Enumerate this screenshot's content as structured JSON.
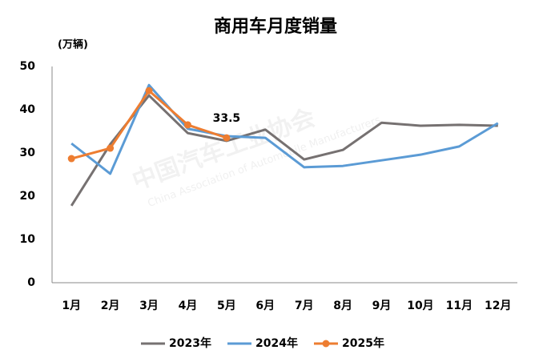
{
  "chart_data": {
    "type": "line",
    "title": "商用车月度销量",
    "y_label": "(万辆)",
    "watermark": "中国汽车工业协会",
    "watermark_subtitle": "China Association of Automobile Manufacturers",
    "categories": [
      "1月",
      "2月",
      "3月",
      "4月",
      "5月",
      "6月",
      "7月",
      "8月",
      "9月",
      "10月",
      "11月",
      "12月"
    ],
    "series": [
      {
        "name": "2023年",
        "color": "#767171",
        "markers": false,
        "values": [
          17.8,
          32,
          43.3,
          34.6,
          32.8,
          35.4,
          28.5,
          30.7,
          37,
          36.3,
          36.5,
          36.3
        ]
      },
      {
        "name": "2024年",
        "color": "#5b9bd5",
        "markers": false,
        "values": [
          32.2,
          25.2,
          45.7,
          35.6,
          33.9,
          33.5,
          26.7,
          27,
          28.3,
          29.6,
          31.5,
          36.9
        ]
      },
      {
        "name": "2025年",
        "color": "#ed7d31",
        "markers": true,
        "values": [
          28.7,
          31.1,
          44.4,
          36.5,
          33.5,
          null,
          null,
          null,
          null,
          null,
          null,
          null
        ]
      }
    ],
    "annotations": [
      {
        "series": 2,
        "index": 4,
        "text": "33.5"
      }
    ],
    "ylim": [
      0,
      50
    ],
    "yticks": [
      0,
      10,
      20,
      30,
      40,
      50
    ],
    "grid": false,
    "legend": "bottom"
  }
}
